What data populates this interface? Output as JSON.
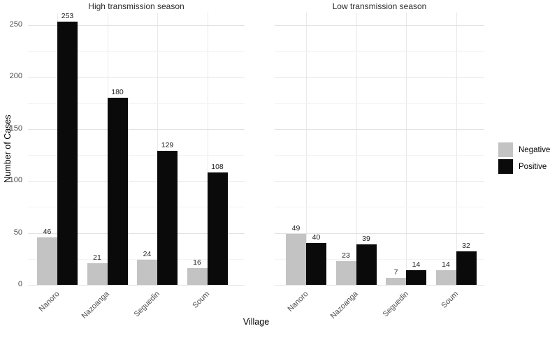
{
  "chart_data": {
    "type": "bar",
    "title": "",
    "xlabel": "Village",
    "ylabel": "Number of Cases",
    "ylim": [
      0,
      262
    ],
    "yticks": [
      0,
      50,
      100,
      150,
      200,
      250
    ],
    "yticks_minor": [
      25,
      75,
      125,
      175,
      225
    ],
    "grid": true,
    "legend_position": "right",
    "bar_value_labels": true,
    "categories": [
      "Nanoro",
      "Nazoanga",
      "Seguedin",
      "Soum"
    ],
    "facets": [
      {
        "title": "High transmission season",
        "series": [
          {
            "name": "Negative",
            "values": [
              46,
              21,
              24,
              16
            ]
          },
          {
            "name": "Positive",
            "values": [
              253,
              180,
              129,
              108
            ]
          }
        ]
      },
      {
        "title": "Low transmission season",
        "series": [
          {
            "name": "Negative",
            "values": [
              49,
              23,
              7,
              14
            ]
          },
          {
            "name": "Positive",
            "values": [
              40,
              39,
              14,
              32
            ]
          }
        ]
      }
    ],
    "legend": [
      {
        "label": "Negative",
        "color": "#c3c3c3"
      },
      {
        "label": "Positive",
        "color": "#0a0a0a"
      }
    ]
  },
  "colors": {
    "background": "#ffffff",
    "grid_major": "#e3e3e3",
    "grid_minor": "#f3f3f3",
    "grid_vertical": "#e9e9e9",
    "tick_text": "#4d4d4d",
    "value_label_text": "#1f1f1f"
  }
}
